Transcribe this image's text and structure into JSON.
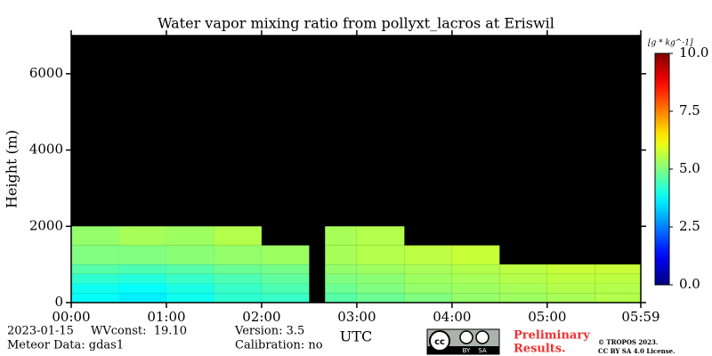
{
  "chart_data": {
    "type": "heatmap",
    "title": "Water vapor mixing ratio from pollyxt_lacros at Eriswil",
    "ylabel": "Height (m)",
    "xlabel": "UTC",
    "xlim": [
      0,
      359
    ],
    "ylim": [
      0,
      7000
    ],
    "xticks": [
      {
        "value": 0,
        "label": "00:00"
      },
      {
        "value": 60,
        "label": "01:00"
      },
      {
        "value": 120,
        "label": "02:00"
      },
      {
        "value": 180,
        "label": "03:00"
      },
      {
        "value": 240,
        "label": "04:00"
      },
      {
        "value": 300,
        "label": "05:00"
      },
      {
        "value": 359,
        "label": "05:59"
      }
    ],
    "yticks": [
      0,
      2000,
      4000,
      6000
    ],
    "x_bins": [
      0,
      30,
      60,
      90,
      120,
      150,
      160,
      180,
      210,
      240,
      270,
      300,
      330,
      359
    ],
    "y_bins": [
      0,
      250,
      500,
      750,
      1000,
      1500,
      2000
    ],
    "values": [
      [
        3.8,
        3.6,
        3.9,
        4.2,
        4.3,
        null,
        4.6,
        4.8,
        5.0,
        5.2,
        5.3,
        5.4,
        5.5
      ],
      [
        3.9,
        3.8,
        4.0,
        4.3,
        4.5,
        null,
        4.8,
        5.0,
        5.2,
        5.3,
        5.4,
        5.5,
        5.5
      ],
      [
        4.2,
        4.1,
        4.3,
        4.5,
        4.7,
        null,
        5.0,
        5.1,
        5.3,
        5.4,
        5.5,
        5.6,
        5.6
      ],
      [
        4.6,
        4.5,
        4.6,
        4.8,
        4.9,
        null,
        5.2,
        5.3,
        5.4,
        5.5,
        5.6,
        5.7,
        5.7
      ],
      [
        5.0,
        5.0,
        5.1,
        5.2,
        5.3,
        null,
        5.4,
        5.5,
        5.6,
        5.7,
        null,
        null,
        null
      ],
      [
        5.2,
        5.4,
        5.3,
        5.5,
        null,
        null,
        5.4,
        5.5,
        null,
        null,
        null,
        null,
        null
      ]
    ],
    "background": "#000000",
    "colormap": "jet",
    "clim": [
      0,
      10
    ],
    "cticks": [
      {
        "value": 0,
        "label": "0.0"
      },
      {
        "value": 2.5,
        "label": "2.5"
      },
      {
        "value": 5,
        "label": "5.0"
      },
      {
        "value": 7.5,
        "label": "7.5"
      },
      {
        "value": 10,
        "label": "10.0"
      }
    ],
    "clabel": "[g * kg^-1]"
  },
  "footer": {
    "date": "2023-01-15",
    "wvconst": "WVconst:  19.10",
    "meteor": "Meteor Data: gdas1",
    "version": "Version: 3.5",
    "calibration": "Calibration: no",
    "badge": [
      "BY",
      "SA"
    ],
    "preliminary": [
      "Preliminary",
      "Results."
    ],
    "copyright": [
      "© TROPOS 2023.",
      "CC BY SA 4.0 License."
    ]
  }
}
